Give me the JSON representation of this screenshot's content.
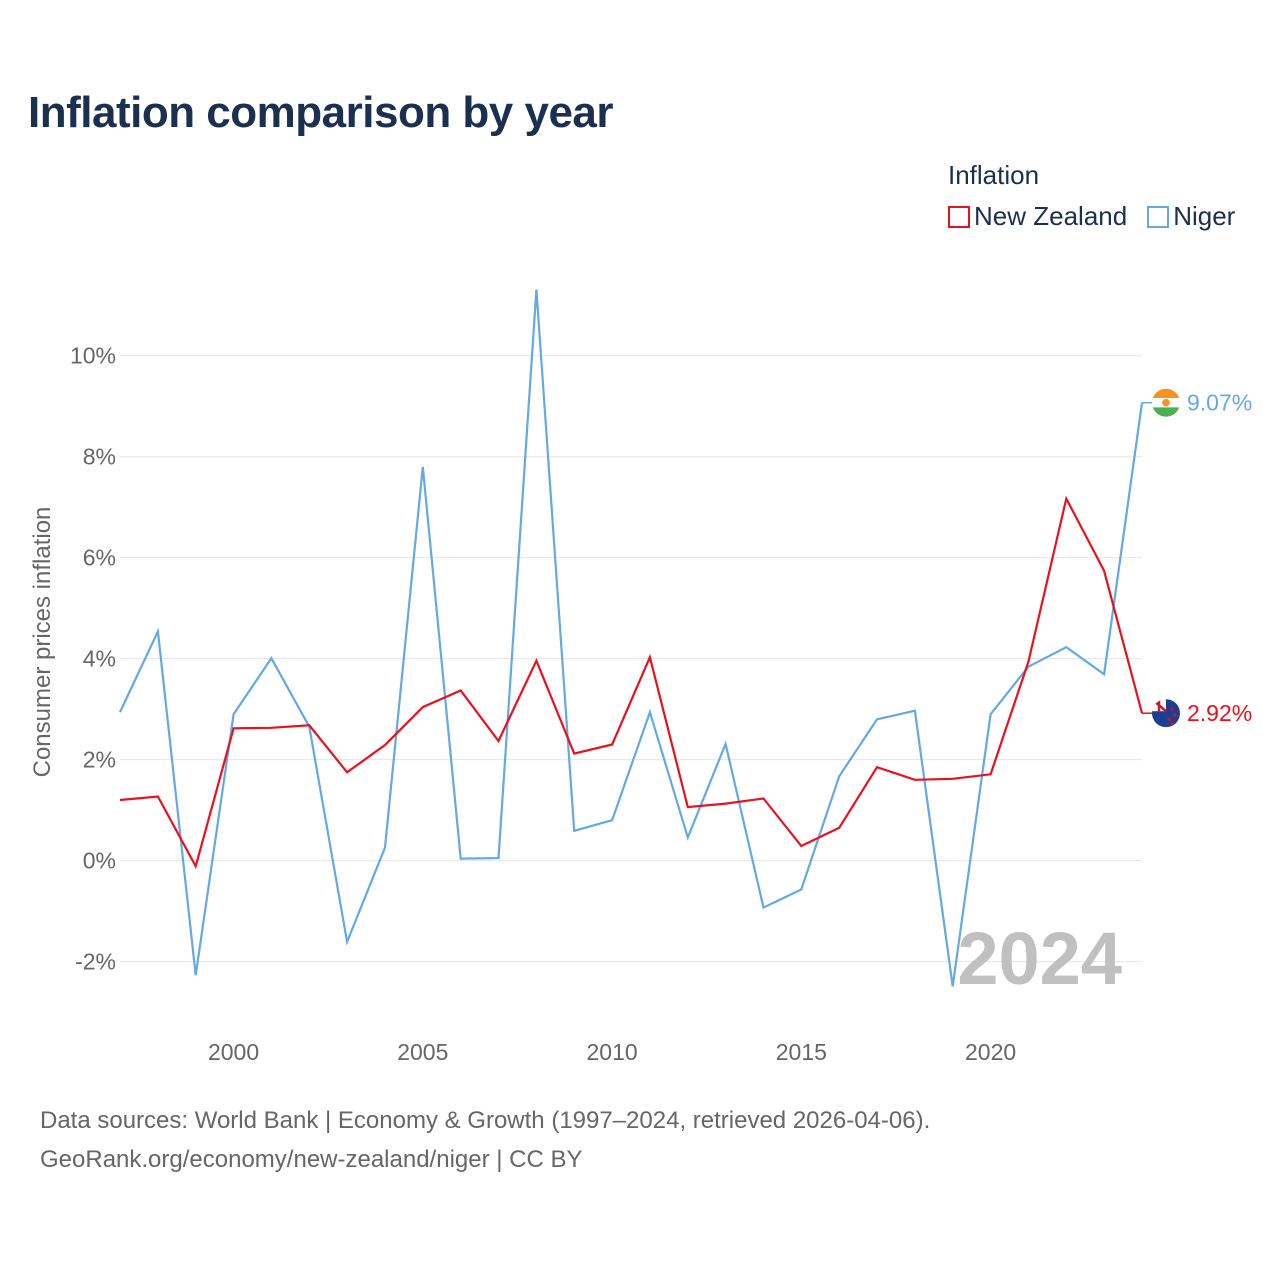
{
  "title": "Inflation comparison by year",
  "legend": {
    "title": "Inflation",
    "items": [
      {
        "name": "New Zealand",
        "color": "#e8111d"
      },
      {
        "name": "Niger",
        "color": "#64a8e4"
      }
    ]
  },
  "chart_data": {
    "type": "line",
    "ylabel": "Consumer prices inflation",
    "xlabel": "",
    "x": [
      1997,
      1998,
      1999,
      2000,
      2001,
      2002,
      2003,
      2004,
      2005,
      2006,
      2007,
      2008,
      2009,
      2010,
      2011,
      2012,
      2013,
      2014,
      2015,
      2016,
      2017,
      2018,
      2019,
      2020,
      2021,
      2022,
      2023,
      2024
    ],
    "series": [
      {
        "name": "New Zealand",
        "color": "#e8111d",
        "end_label": "2.92%",
        "values": [
          1.2,
          1.27,
          -0.11,
          2.62,
          2.63,
          2.68,
          1.75,
          2.29,
          3.04,
          3.37,
          2.37,
          3.96,
          2.12,
          2.3,
          4.03,
          1.06,
          1.13,
          1.23,
          0.29,
          0.65,
          1.85,
          1.6,
          1.62,
          1.71,
          3.94,
          7.17,
          5.74,
          2.92
        ]
      },
      {
        "name": "Niger",
        "color": "#64a8e4",
        "end_label": "9.07%",
        "values": [
          2.94,
          4.54,
          -2.27,
          2.9,
          4.01,
          2.65,
          -1.61,
          0.26,
          7.8,
          0.04,
          0.05,
          11.31,
          0.59,
          0.8,
          2.94,
          0.46,
          2.31,
          -0.93,
          -0.57,
          1.67,
          2.8,
          2.97,
          -2.49,
          2.9,
          3.84,
          4.23,
          3.69,
          9.07
        ]
      }
    ],
    "xticks": [
      2000,
      2005,
      2010,
      2015,
      2020
    ],
    "ytick_values": [
      -2,
      0,
      2,
      4,
      6,
      8,
      10
    ],
    "ytick_labels": [
      "-2%",
      "0%",
      "2%",
      "4%",
      "6%",
      "8%",
      "10%"
    ],
    "xlim": [
      1997,
      2024
    ],
    "ylim": [
      -2.8,
      11.5
    ],
    "year_watermark": "2024"
  },
  "footer": {
    "source": "Data sources: World Bank | Economy & Growth (1997–2024, retrieved 2026-04-06).",
    "credit": "GeoRank.org/economy/new-zealand/niger | CC BY"
  }
}
